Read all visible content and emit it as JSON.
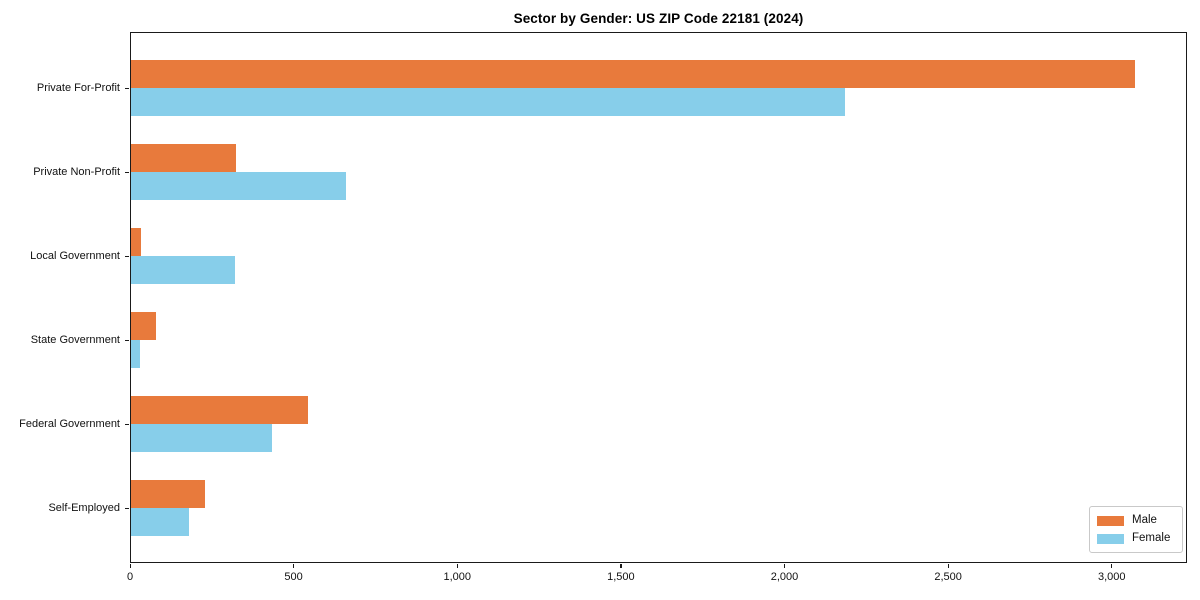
{
  "chart_data": {
    "type": "bar",
    "orientation": "horizontal",
    "title": "Sector by Gender: US ZIP Code 22181 (2024)",
    "categories": [
      "Private For-Profit",
      "Private Non-Profit",
      "Local Government",
      "State Government",
      "Federal Government",
      "Self-Employed"
    ],
    "series": [
      {
        "name": "Male",
        "color": "#e87a3c",
        "values": [
          3070,
          325,
          35,
          80,
          545,
          230
        ]
      },
      {
        "name": "Female",
        "color": "#87ceea",
        "values": [
          2185,
          660,
          320,
          30,
          435,
          180
        ]
      }
    ],
    "xlabel": "",
    "ylabel": "",
    "xlim": [
      0,
      3230
    ],
    "x_ticks": [
      0,
      500,
      1000,
      1500,
      2000,
      2500,
      3000
    ],
    "x_tick_labels": [
      "0",
      "500",
      "1,000",
      "1,500",
      "2,000",
      "2,500",
      "3,000"
    ],
    "grid": false,
    "legend": {
      "position": "lower right",
      "labels": [
        "Male",
        "Female"
      ]
    },
    "colors": {
      "male_bar": "#e87a3c",
      "female_bar": "#87ceea",
      "spine": "#1a1a1a",
      "background": "#ffffff",
      "text": "#111111"
    }
  }
}
